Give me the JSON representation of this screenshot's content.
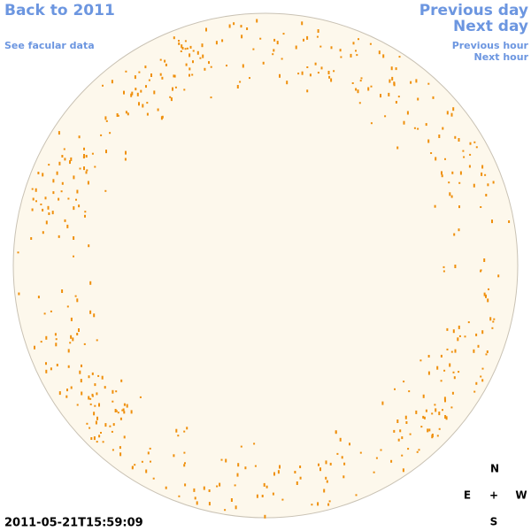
{
  "nav": {
    "back": "Back to 2011",
    "facular": "See facular data",
    "previous_day": "Previous day",
    "next_day": "Next day",
    "previous_hour": "Previous hour",
    "next_hour": "Next hour"
  },
  "timestamp": "2011-05-21T15:59:09",
  "compass": {
    "north": "N",
    "east": "E",
    "center": "+",
    "west": "W",
    "south": "S"
  }
}
